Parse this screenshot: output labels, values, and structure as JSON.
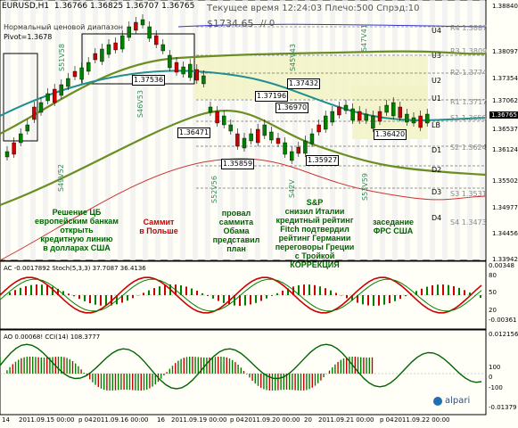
{
  "header": {
    "symbol": "EURUSD,H1",
    "ohlc": "1.36766 1.36825 1.36707 1.36765",
    "indicator_name": "Нормальный ценовой диапазон",
    "pivot_text": "Pivot=1.3678",
    "server_time": "Текущее время 12:24:03 Плечо:500 Спрэд:10",
    "balance": "$1734.65",
    "slash": "// 0"
  },
  "price_axis": {
    "labels": [
      "1.38840",
      "1.38097",
      "1.37354",
      "1.37062",
      "1.36765",
      "1.36537",
      "1.36124",
      "1.35502",
      "1.34977",
      "1.34456",
      "1.33942"
    ],
    "current_price": "1.36765"
  },
  "pivot_labels": [
    {
      "name": "R4",
      "value": "1.3887"
    },
    {
      "name": "R3",
      "value": "1.3809"
    },
    {
      "name": "R2",
      "value": "1.3774"
    },
    {
      "name": "R1",
      "value": "1.3717"
    },
    {
      "name": "S1",
      "value": "1.3658"
    },
    {
      "name": "S2",
      "value": "1.3624"
    },
    {
      "name": "S3",
      "value": "1.3531"
    },
    {
      "name": "S4",
      "value": "1.3473"
    }
  ],
  "right_levels": [
    "U4",
    "U3",
    "U2",
    "U1",
    "LB",
    "D1",
    "D2",
    "D3",
    "D4"
  ],
  "price_boxes": [
    "1.37536",
    "1.37196",
    "1.37432",
    "1.36970",
    "1.36471",
    "1.35859",
    "1.35927",
    "1.36420"
  ],
  "vertical_labels": [
    "S51V58",
    "S46V53",
    "S49V52",
    "S52V56",
    "S45V43",
    "S47V41",
    "S53V59",
    "S42V"
  ],
  "annotations": [
    {
      "text": "Решение ЦБ\nевропейским банкам\nоткрыть\nкредитную линию\nв долларах США",
      "color": "#006400"
    },
    {
      "text": "Саммит\nв Польше",
      "color": "#cc0000"
    },
    {
      "text": "провал\nсаммита\nОбама\nпредставил\nплан",
      "color": "#006400"
    },
    {
      "text": "S&P\nснизил Италии\nкредитный рейтинг\nFitch подтвердил\nрейтинг Германии\nпереговоры Греции\nс Тройкой\nКОРРЕКЦИЯ",
      "color": "#006400"
    },
    {
      "text": "заседание\nФРС США",
      "color": "#006400"
    }
  ],
  "sub1": {
    "header": "AC -0.0017892  Stoch(5,3,3) 37.7087 36.4136",
    "axis": [
      "0.00348",
      "80",
      "50",
      "20",
      "-0.00361"
    ]
  },
  "sub2": {
    "header": "AO 0.00068!  CCI(14) 108.3777",
    "axis": [
      "0.012156",
      "100",
      "0",
      "-100",
      "-0.01379"
    ]
  },
  "time_axis": [
    "14",
    "2011.09.15 00:00",
    "р 04",
    "2011.09.16 00:00",
    "16",
    "2011.09.19 00:00",
    "р 04",
    "2011.09.20 00:00",
    "20",
    "2011.09.21 00:00",
    "р 04",
    "2011.09.22 00:00"
  ],
  "broker": "alpari",
  "colors": {
    "bull": "#008000",
    "bear": "#cc0000",
    "zone": "#f3f3c8",
    "ma_green": "#6b8e23",
    "ma_teal": "#1f8f8f"
  }
}
